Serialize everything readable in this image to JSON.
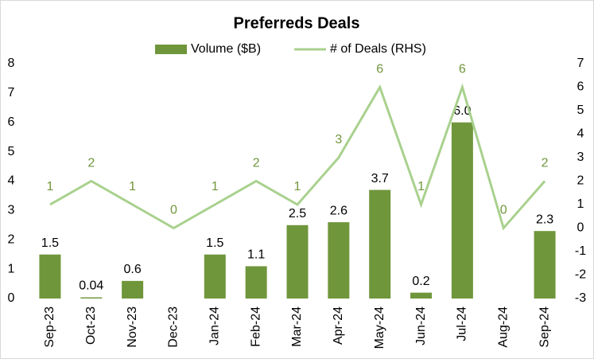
{
  "chart_data": {
    "type": "bar-line",
    "title": "Preferreds Deals",
    "categories": [
      "Sep-23",
      "Oct-23",
      "Nov-23",
      "Dec-23",
      "Jan-24",
      "Feb-24",
      "Mar-24",
      "Apr-24",
      "May-24",
      "Jun-24",
      "Jul-24",
      "Aug-24",
      "Sep-24"
    ],
    "series": [
      {
        "name": "Volume ($B)",
        "type": "bar",
        "color": "#70963c",
        "values": [
          1.5,
          0.04,
          0.6,
          null,
          1.5,
          1.1,
          2.5,
          2.6,
          3.7,
          0.2,
          6.0,
          null,
          2.3
        ],
        "value_labels": [
          "1.5",
          "0.04",
          "0.6",
          null,
          "1.5",
          "1.1",
          "2.5",
          "2.6",
          "3.7",
          "0.2",
          "6.0",
          null,
          "2.3"
        ]
      },
      {
        "name": "# of Deals (RHS)",
        "type": "line",
        "axis": "y2",
        "color": "#a9d18e",
        "values": [
          1,
          2,
          1,
          0,
          1,
          2,
          1,
          3,
          6,
          1,
          6,
          0,
          2
        ]
      }
    ],
    "ylim": [
      0,
      8
    ],
    "yticks": [
      0,
      1,
      2,
      3,
      4,
      5,
      6,
      7,
      8
    ],
    "y2lim": [
      -3,
      7
    ],
    "y2ticks": [
      -3,
      -2,
      -1,
      0,
      1,
      2,
      3,
      4,
      5,
      6,
      7
    ],
    "legend": "top"
  }
}
